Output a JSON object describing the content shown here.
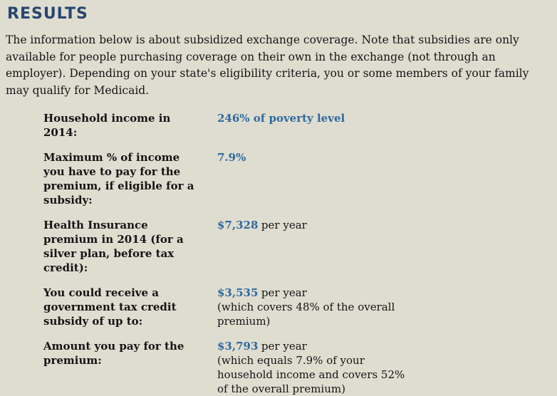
{
  "colors": {
    "background": "#dfddd0",
    "heading_navy": "#28466f",
    "value_blue": "#2e699e",
    "body_text": "#141414"
  },
  "header": {
    "title": "RESULTS"
  },
  "intro": "The information below is about subsidized exchange coverage. Note that subsidies are only available for people purchasing coverage on their own in the exchange (not through an employer). Depending on your state's eligibility criteria, you or some members of your family may qualify for Medicaid.",
  "results": {
    "rows": [
      {
        "label": "Household income in 2014:",
        "amount": "246% of poverty level",
        "suffix": "",
        "note": ""
      },
      {
        "label": "Maximum % of income you have to pay for the premium, if eligible for a subsidy:",
        "amount": "7.9%",
        "suffix": "",
        "note": ""
      },
      {
        "label": "Health Insurance premium in 2014 (for a silver plan, before tax credit):",
        "amount": "$7,328",
        "suffix": "per year",
        "note": ""
      },
      {
        "label": "You could receive a government tax credit subsidy of up to:",
        "amount": "$3,535",
        "suffix": "per year",
        "note": "(which covers 48% of the overall premium)"
      },
      {
        "label": "Amount you pay for the premium:",
        "amount": "$3,793",
        "suffix": "per year",
        "note": "(which equals 7.9% of your household income and covers 52% of the overall premium)"
      }
    ]
  }
}
